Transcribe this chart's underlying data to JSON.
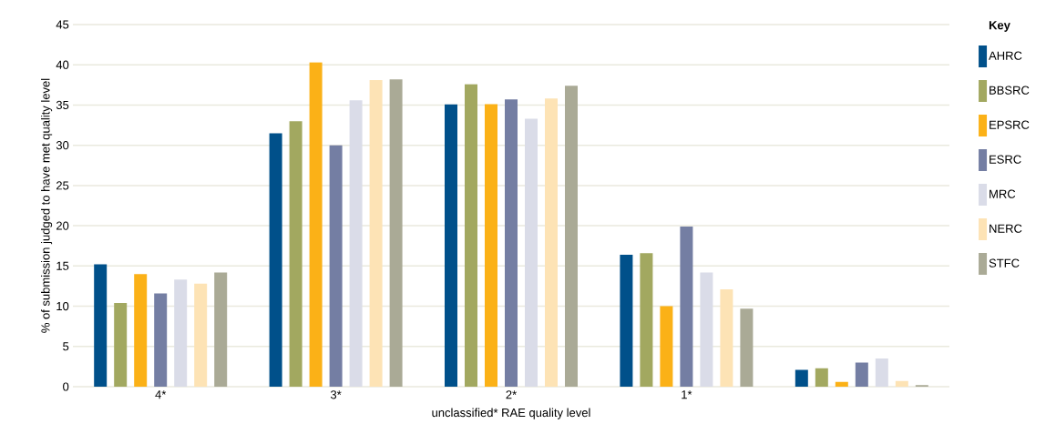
{
  "chart_data": {
    "type": "bar",
    "xlabel": "unclassified* RAE quality level",
    "ylabel": "% of submission judged to have met quality level",
    "legend_title": "Key",
    "categories": [
      "4*",
      "3*",
      "2*",
      "1*",
      null
    ],
    "series": [
      {
        "name": "AHRC",
        "color": "#00508a",
        "values": [
          15.2,
          31.5,
          35.1,
          16.4,
          2.1
        ]
      },
      {
        "name": "BBSRC",
        "color": "#a2a860",
        "values": [
          10.4,
          33.0,
          37.6,
          16.6,
          2.3
        ]
      },
      {
        "name": "EPSRC",
        "color": "#fbb117",
        "values": [
          14.0,
          40.3,
          35.1,
          10.0,
          0.6
        ]
      },
      {
        "name": "ESRC",
        "color": "#747ea3",
        "values": [
          11.6,
          30.0,
          35.7,
          19.9,
          3.0
        ]
      },
      {
        "name": "MRC",
        "color": "#dadce8",
        "values": [
          13.3,
          35.6,
          33.3,
          14.2,
          3.5
        ]
      },
      {
        "name": "NERC",
        "color": "#fde3b5",
        "values": [
          12.8,
          38.1,
          35.8,
          12.1,
          0.7
        ]
      },
      {
        "name": "STFC",
        "color": "#aaaa96",
        "values": [
          14.2,
          38.2,
          37.4,
          9.7,
          0.2
        ]
      }
    ],
    "ylim": [
      0,
      45
    ],
    "yticks": [
      0,
      5,
      10,
      15,
      20,
      25,
      30,
      35,
      40,
      45
    ],
    "grid": "y",
    "legend": "right"
  }
}
